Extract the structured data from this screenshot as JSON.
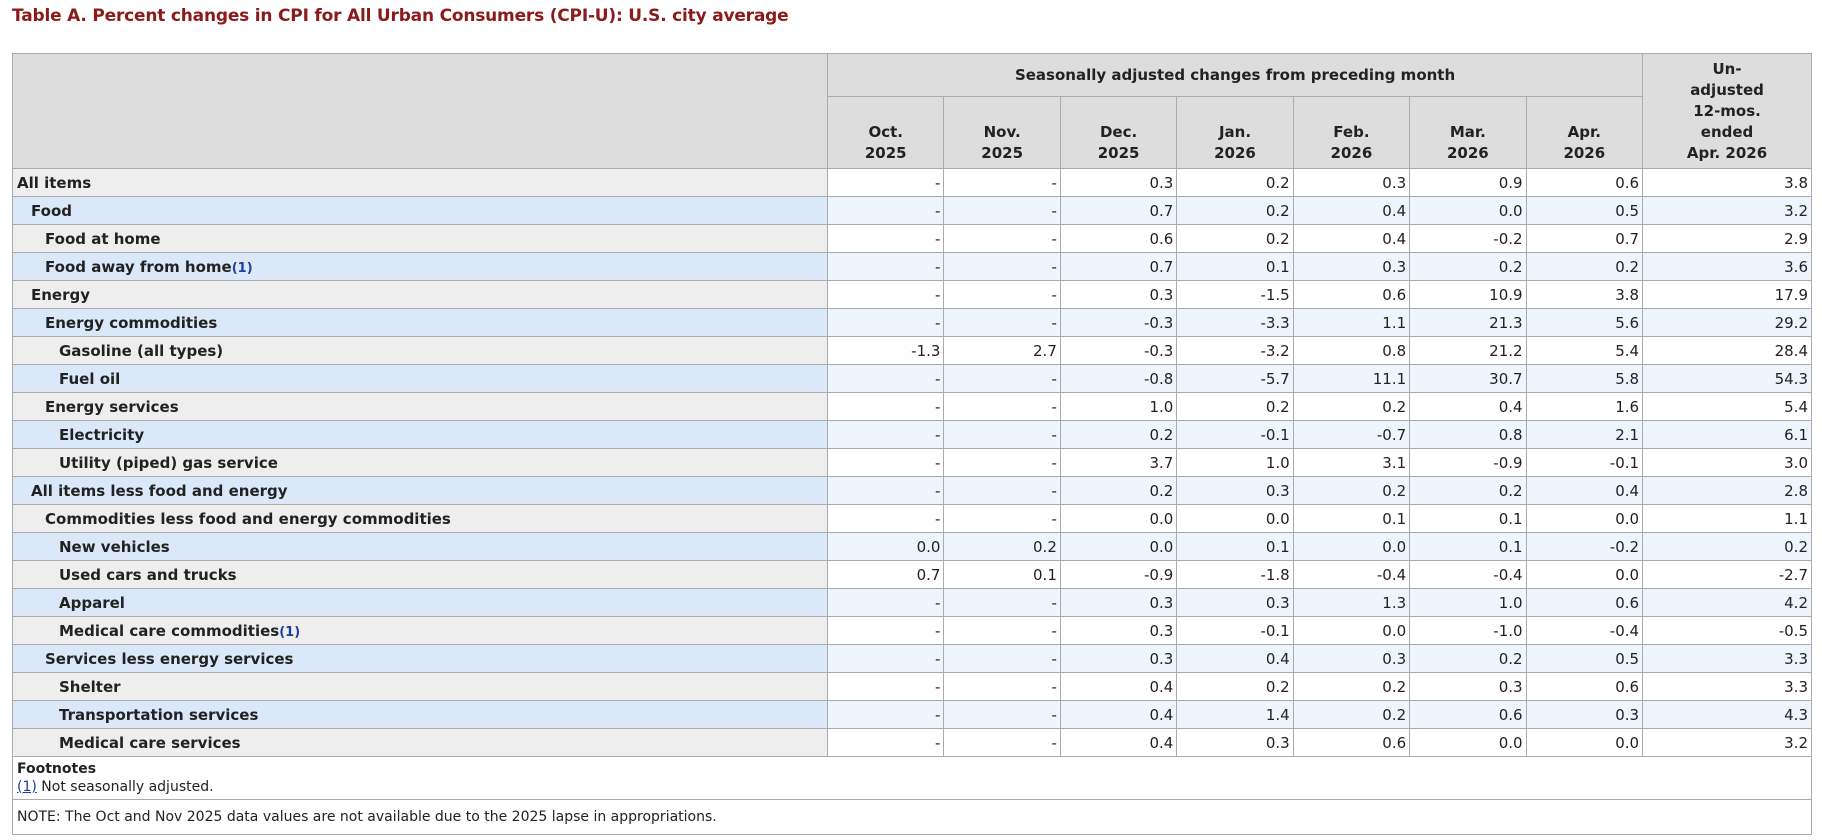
{
  "caption": "Table A. Percent changes in CPI for All Urban Consumers (CPI-U): U.S. city average",
  "header": {
    "group_label": "Seasonally adjusted changes from preceding month",
    "unadjusted_label": "Un-\nadjusted\n12-mos.\nended\nApr. 2026",
    "months": [
      {
        "month": "Oct.",
        "year": "2025"
      },
      {
        "month": "Nov.",
        "year": "2025"
      },
      {
        "month": "Dec.",
        "year": "2025"
      },
      {
        "month": "Jan.",
        "year": "2026"
      },
      {
        "month": "Feb.",
        "year": "2026"
      },
      {
        "month": "Mar.",
        "year": "2026"
      },
      {
        "month": "Apr.",
        "year": "2026"
      }
    ]
  },
  "rows": [
    {
      "label": "All items",
      "level": 0,
      "fn": "",
      "values": [
        "-",
        "-",
        "0.3",
        "0.2",
        "0.3",
        "0.9",
        "0.6",
        "3.8"
      ]
    },
    {
      "label": "Food",
      "level": 1,
      "fn": "",
      "values": [
        "-",
        "-",
        "0.7",
        "0.2",
        "0.4",
        "0.0",
        "0.5",
        "3.2"
      ]
    },
    {
      "label": "Food at home",
      "level": 2,
      "fn": "",
      "values": [
        "-",
        "-",
        "0.6",
        "0.2",
        "0.4",
        "-0.2",
        "0.7",
        "2.9"
      ]
    },
    {
      "label": "Food away from home",
      "level": 2,
      "fn": "(1)",
      "values": [
        "-",
        "-",
        "0.7",
        "0.1",
        "0.3",
        "0.2",
        "0.2",
        "3.6"
      ]
    },
    {
      "label": "Energy",
      "level": 1,
      "fn": "",
      "values": [
        "-",
        "-",
        "0.3",
        "-1.5",
        "0.6",
        "10.9",
        "3.8",
        "17.9"
      ]
    },
    {
      "label": "Energy commodities",
      "level": 2,
      "fn": "",
      "values": [
        "-",
        "-",
        "-0.3",
        "-3.3",
        "1.1",
        "21.3",
        "5.6",
        "29.2"
      ]
    },
    {
      "label": "Gasoline (all types)",
      "level": 3,
      "fn": "",
      "values": [
        "-1.3",
        "2.7",
        "-0.3",
        "-3.2",
        "0.8",
        "21.2",
        "5.4",
        "28.4"
      ]
    },
    {
      "label": "Fuel oil",
      "level": 3,
      "fn": "",
      "values": [
        "-",
        "-",
        "-0.8",
        "-5.7",
        "11.1",
        "30.7",
        "5.8",
        "54.3"
      ]
    },
    {
      "label": "Energy services",
      "level": 2,
      "fn": "",
      "values": [
        "-",
        "-",
        "1.0",
        "0.2",
        "0.2",
        "0.4",
        "1.6",
        "5.4"
      ]
    },
    {
      "label": "Electricity",
      "level": 3,
      "fn": "",
      "values": [
        "-",
        "-",
        "0.2",
        "-0.1",
        "-0.7",
        "0.8",
        "2.1",
        "6.1"
      ]
    },
    {
      "label": "Utility (piped) gas service",
      "level": 3,
      "fn": "",
      "values": [
        "-",
        "-",
        "3.7",
        "1.0",
        "3.1",
        "-0.9",
        "-0.1",
        "3.0"
      ]
    },
    {
      "label": "All items less food and energy",
      "level": 1,
      "fn": "",
      "values": [
        "-",
        "-",
        "0.2",
        "0.3",
        "0.2",
        "0.2",
        "0.4",
        "2.8"
      ]
    },
    {
      "label": "Commodities less food and energy commodities",
      "level": 2,
      "fn": "",
      "values": [
        "-",
        "-",
        "0.0",
        "0.0",
        "0.1",
        "0.1",
        "0.0",
        "1.1"
      ]
    },
    {
      "label": "New vehicles",
      "level": 3,
      "fn": "",
      "values": [
        "0.0",
        "0.2",
        "0.0",
        "0.1",
        "0.0",
        "0.1",
        "-0.2",
        "0.2"
      ]
    },
    {
      "label": "Used cars and trucks",
      "level": 3,
      "fn": "",
      "values": [
        "0.7",
        "0.1",
        "-0.9",
        "-1.8",
        "-0.4",
        "-0.4",
        "0.0",
        "-2.7"
      ]
    },
    {
      "label": "Apparel",
      "level": 3,
      "fn": "",
      "values": [
        "-",
        "-",
        "0.3",
        "0.3",
        "1.3",
        "1.0",
        "0.6",
        "4.2"
      ]
    },
    {
      "label": "Medical care commodities",
      "level": 3,
      "fn": "(1)",
      "values": [
        "-",
        "-",
        "0.3",
        "-0.1",
        "0.0",
        "-1.0",
        "-0.4",
        "-0.5"
      ]
    },
    {
      "label": "Services less energy services",
      "level": 2,
      "fn": "",
      "values": [
        "-",
        "-",
        "0.3",
        "0.4",
        "0.3",
        "0.2",
        "0.5",
        "3.3"
      ]
    },
    {
      "label": "Shelter",
      "level": 3,
      "fn": "",
      "values": [
        "-",
        "-",
        "0.4",
        "0.2",
        "0.2",
        "0.3",
        "0.6",
        "3.3"
      ]
    },
    {
      "label": "Transportation services",
      "level": 3,
      "fn": "",
      "values": [
        "-",
        "-",
        "0.4",
        "1.4",
        "0.2",
        "0.6",
        "0.3",
        "4.3"
      ]
    },
    {
      "label": "Medical care services",
      "level": 3,
      "fn": "",
      "values": [
        "-",
        "-",
        "0.4",
        "0.3",
        "0.6",
        "0.0",
        "0.0",
        "3.2"
      ]
    }
  ],
  "footnotes": {
    "title": "Footnotes",
    "items": [
      {
        "ref": "(1)",
        "text": " Not seasonally adjusted."
      }
    ]
  },
  "note": "NOTE: The Oct and Nov 2025 data values are not available due to the 2025 lapse in appropriations."
}
